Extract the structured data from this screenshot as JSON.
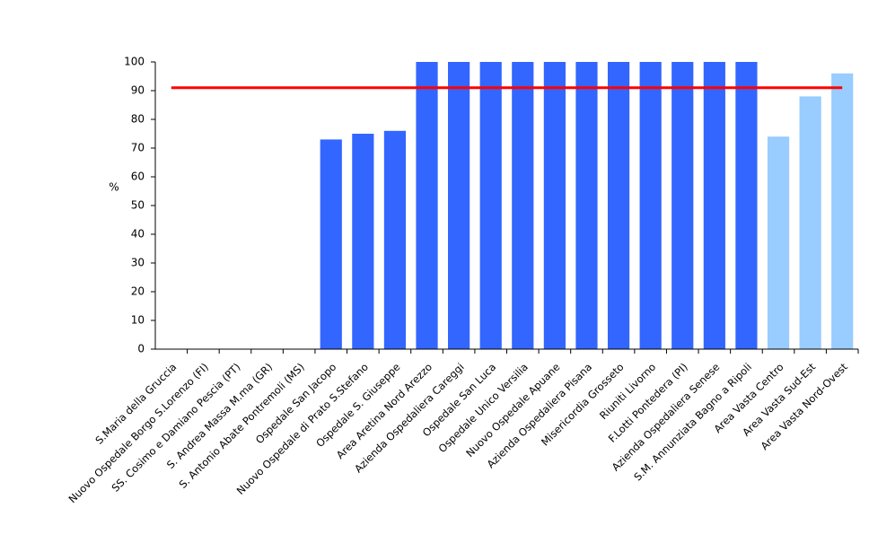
{
  "chart_data": {
    "type": "bar",
    "y_label": "%",
    "categories": [
      "S.Maria della Gruccia",
      "Nuovo Ospedale Borgo S.Lorenzo (FI)",
      "SS. Cosimo e Damiano Pescia (PT)",
      "S. Andrea Massa M.ma (GR)",
      "S. Antonio Abate Pontremoli (MS)",
      "Ospedale San Jacopo",
      "Nuovo Ospedale di Prato S.Stefano",
      "Ospedale S. Giuseppe",
      "Area Aretina Nord Arezzo",
      "Azienda Ospedaliera Careggi",
      "Ospedale San Luca",
      "Ospedale Unico Versilia",
      "Nuovo Ospedale Apuane",
      "Azienda Ospedaliera Pisana",
      "Misericordia Grosseto",
      "Riuniti Livorno",
      "F.Lotti Pontedera (PI)",
      "Azienda Ospedaliera Senese",
      "S.M. Annunziata Bagno a Ripoli",
      "Area Vasta Centro",
      "Area Vasta Sud-Est",
      "Area Vasta Nord-Ovest"
    ],
    "values": [
      0,
      0,
      0,
      0,
      0,
      73,
      75,
      76,
      100,
      100,
      100,
      100,
      100,
      100,
      100,
      100,
      100,
      100,
      100,
      74,
      88,
      96
    ],
    "colors": [
      "#3366ff",
      "#3366ff",
      "#3366ff",
      "#3366ff",
      "#3366ff",
      "#3366ff",
      "#3366ff",
      "#3366ff",
      "#3366ff",
      "#3366ff",
      "#3366ff",
      "#3366ff",
      "#3366ff",
      "#3366ff",
      "#3366ff",
      "#3366ff",
      "#3366ff",
      "#3366ff",
      "#3366ff",
      "#99ccff",
      "#99ccff",
      "#99ccff"
    ],
    "reference_line": {
      "value": 91,
      "color": "#ff0000"
    },
    "ylim": [
      0,
      100
    ],
    "yticks": [
      0,
      10,
      20,
      30,
      40,
      50,
      60,
      70,
      80,
      90,
      100
    ]
  }
}
